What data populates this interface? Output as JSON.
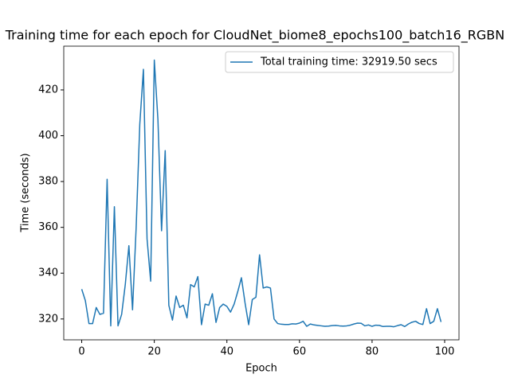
{
  "chart_data": {
    "type": "line",
    "title": "Training time for each epoch for CloudNet_biome8_epochs100_batch16_RGBN",
    "x_label": "Epoch",
    "y_label": "Time (seconds)",
    "x": [
      0,
      1,
      2,
      3,
      4,
      5,
      6,
      7,
      8,
      9,
      10,
      11,
      12,
      13,
      14,
      15,
      16,
      17,
      18,
      19,
      20,
      21,
      22,
      23,
      24,
      25,
      26,
      27,
      28,
      29,
      30,
      31,
      32,
      33,
      34,
      35,
      36,
      37,
      38,
      39,
      40,
      41,
      42,
      43,
      44,
      45,
      46,
      47,
      48,
      49,
      50,
      51,
      52,
      53,
      54,
      55,
      56,
      57,
      58,
      59,
      60,
      61,
      62,
      63,
      64,
      65,
      66,
      67,
      68,
      69,
      70,
      71,
      72,
      73,
      74,
      75,
      76,
      77,
      78,
      79,
      80,
      81,
      82,
      83,
      84,
      85,
      86,
      87,
      88,
      89,
      90,
      91,
      92,
      93,
      94,
      95,
      96,
      97,
      98,
      99
    ],
    "series": [
      {
        "name": "Total training time: 32919.50 secs",
        "color": "#1f77b4",
        "values": [
          333,
          328,
          318,
          318,
          325,
          322,
          322.5,
          381,
          317,
          369,
          317,
          322,
          335,
          352,
          324,
          360,
          405,
          429,
          355,
          336.5,
          433,
          407,
          358.5,
          393.5,
          326,
          319.5,
          330,
          325,
          326,
          320.5,
          335,
          334,
          338.5,
          317.5,
          326.5,
          326,
          331,
          318.5,
          325,
          326.5,
          325.5,
          323,
          326.5,
          332,
          338,
          327,
          317.5,
          328.5,
          329.5,
          348,
          333.5,
          334,
          333.5,
          320,
          318,
          317.7,
          317.6,
          317.6,
          317.9,
          317.8,
          318.2,
          319,
          316.8,
          317.8,
          317.4,
          317.2,
          317,
          316.8,
          316.9,
          317.1,
          317.2,
          317,
          316.9,
          317,
          317.3,
          317.8,
          318.2,
          318.1,
          317,
          317.4,
          316.8,
          317.3,
          317.2,
          316.7,
          316.8,
          316.8,
          316.6,
          317.1,
          317.5,
          316.7,
          317.8,
          318.6,
          319,
          318,
          317.6,
          324.5,
          318,
          319,
          324.5,
          318.7
        ]
      }
    ],
    "xlim": [
      -4.95,
      103.95
    ],
    "ylim": [
      310.9,
      439.1
    ],
    "xticks": [
      0,
      20,
      40,
      60,
      80,
      100
    ],
    "yticks": [
      320,
      340,
      360,
      380,
      400,
      420
    ],
    "legend": "upper right"
  }
}
